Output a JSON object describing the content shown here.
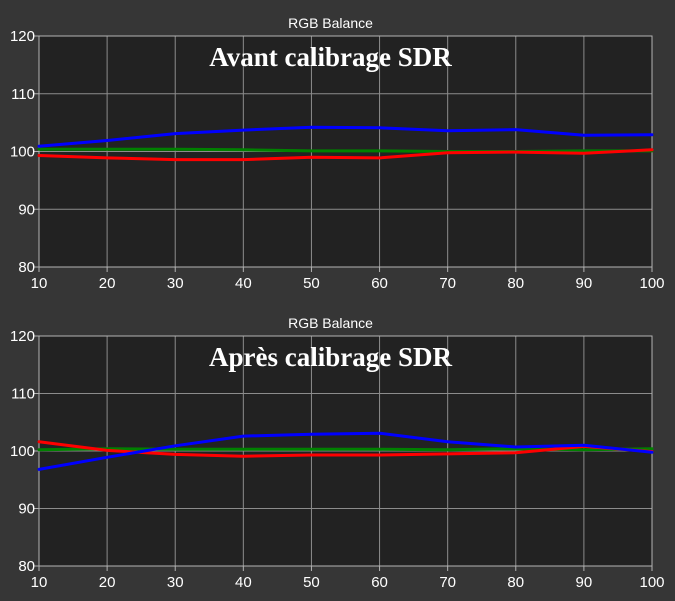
{
  "chart_data": [
    {
      "type": "line",
      "title": "RGB Balance",
      "annotation": "Avant calibrage SDR",
      "xlim": [
        10,
        100
      ],
      "ylim": [
        80,
        120
      ],
      "xticks": [
        10,
        20,
        30,
        40,
        50,
        60,
        70,
        80,
        90,
        100
      ],
      "yticks": [
        80,
        90,
        100,
        110,
        120
      ],
      "grid": true,
      "x": [
        10,
        20,
        30,
        40,
        50,
        60,
        70,
        80,
        90,
        100
      ],
      "series": [
        {
          "color": "#008000",
          "values": [
            100.4,
            100.4,
            100.4,
            100.3,
            100.1,
            100.1,
            100.0,
            100.0,
            100.1,
            100.1
          ]
        },
        {
          "color": "#ff0000",
          "values": [
            99.3,
            98.9,
            98.6,
            98.6,
            99.0,
            98.9,
            99.8,
            99.9,
            99.7,
            100.3
          ]
        },
        {
          "color": "#0000ff",
          "values": [
            100.9,
            101.9,
            103.1,
            103.7,
            104.2,
            104.1,
            103.6,
            103.8,
            102.8,
            102.9
          ]
        }
      ]
    },
    {
      "type": "line",
      "title": "RGB Balance",
      "annotation": "Après calibrage SDR",
      "xlim": [
        10,
        100
      ],
      "ylim": [
        80,
        120
      ],
      "xticks": [
        10,
        20,
        30,
        40,
        50,
        60,
        70,
        80,
        90,
        100
      ],
      "yticks": [
        80,
        90,
        100,
        110,
        120
      ],
      "grid": true,
      "x": [
        10,
        20,
        30,
        40,
        50,
        60,
        70,
        80,
        90,
        100
      ],
      "series": [
        {
          "color": "#008000",
          "values": [
            100.2,
            100.4,
            100.3,
            100.3,
            100.3,
            100.3,
            100.2,
            100.4,
            100.2,
            100.4
          ]
        },
        {
          "color": "#ff0000",
          "values": [
            101.6,
            100.1,
            99.4,
            99.1,
            99.3,
            99.3,
            99.5,
            99.7,
            100.8,
            99.9
          ]
        },
        {
          "color": "#0000ff",
          "values": [
            96.8,
            98.9,
            100.9,
            102.6,
            102.9,
            103.1,
            101.6,
            100.7,
            101.0,
            99.8
          ]
        }
      ]
    }
  ]
}
